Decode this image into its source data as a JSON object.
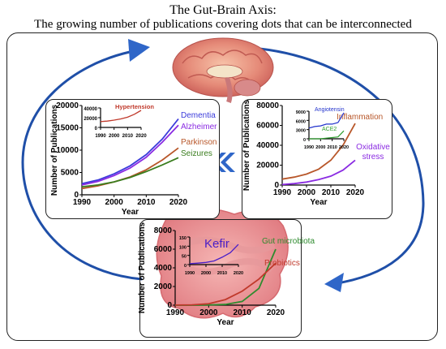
{
  "title": {
    "line1": "The Gut-Brain Axis:",
    "line2": "The growing number of publications covering dots that can be interconnected"
  },
  "colors": {
    "dementia": "#3b3bdb",
    "alzheimer": "#8a2be2",
    "parkinson": "#b8572a",
    "seizures": "#3a7d1e",
    "hypertension": "#c0392b",
    "inflammation": "#b8572a",
    "oxidative": "#8a2be2",
    "angiotensin": "#2233cc",
    "ace2": "#2e9e2e",
    "gut": "#2e8b2e",
    "probiotics": "#c0392b",
    "kefir": "#4a1fc8",
    "arrow": "#1f4fa8",
    "chevron": "#2f66c8"
  },
  "chart_data": [
    {
      "id": "neuro",
      "type": "line",
      "xlabel": "Year",
      "ylabel": "Number of Publications",
      "xlim": [
        1990,
        2020
      ],
      "ylim": [
        0,
        20000
      ],
      "xticks": [
        "1990",
        "2000",
        "2010",
        "2020"
      ],
      "yticks": [
        "0",
        "5000",
        "10000",
        "15000",
        "20000"
      ],
      "x": [
        1990,
        1995,
        2000,
        2005,
        2010,
        2015,
        2020
      ],
      "series": [
        {
          "name": "Dementia",
          "values": [
            2500,
            3300,
            4700,
            6500,
            9000,
            12500,
            17000
          ]
        },
        {
          "name": "Alzheimer",
          "values": [
            2200,
            3000,
            4300,
            6000,
            8400,
            11800,
            15600
          ]
        },
        {
          "name": "Parkinson",
          "values": [
            1400,
            2000,
            2900,
            4000,
            5600,
            7800,
            10500
          ]
        },
        {
          "name": "Seizures",
          "values": [
            1800,
            2200,
            2900,
            3900,
            5200,
            6700,
            8300
          ]
        }
      ],
      "inset": {
        "title": "Hypertension",
        "xticks": [
          "1990",
          "2000",
          "2010",
          "2020"
        ],
        "yticks": [
          "0",
          "20000",
          "40000"
        ],
        "ylim": [
          0,
          40000
        ],
        "x": [
          1990,
          1995,
          2000,
          2005,
          2010,
          2015,
          2020
        ],
        "values": [
          12000,
          13000,
          15000,
          17500,
          21000,
          27000,
          35000
        ]
      }
    },
    {
      "id": "inflammation",
      "type": "line",
      "xlabel": "Year",
      "ylabel": "Number of Publications",
      "xlim": [
        1990,
        2020
      ],
      "ylim": [
        0,
        80000
      ],
      "xticks": [
        "1990",
        "2000",
        "2010",
        "2020"
      ],
      "yticks": [
        "0",
        "20000",
        "40000",
        "60000",
        "80000"
      ],
      "x": [
        1990,
        1995,
        2000,
        2005,
        2010,
        2015,
        2020
      ],
      "series": [
        {
          "name": "Inflammation",
          "values": [
            6000,
            8000,
            11000,
            16000,
            25000,
            40000,
            62000
          ]
        },
        {
          "name": "Oxidative stress",
          "values": [
            500,
            1500,
            3000,
            5500,
            9000,
            15000,
            25000
          ]
        }
      ],
      "inset": {
        "x": [
          1990,
          1995,
          2000,
          2005,
          2010,
          2015,
          2020
        ],
        "xticks": [
          "1990",
          "2000",
          "2010",
          "2020"
        ],
        "yticks": [
          "0",
          "3000",
          "6000",
          "9000"
        ],
        "ylim": [
          0,
          9000
        ],
        "series": [
          {
            "name": "Angiotensin",
            "values": [
              3500,
              4000,
              4200,
              4800,
              4800,
              5300,
              8500
            ]
          },
          {
            "name": "ACE2",
            "values": [
              0,
              0,
              0,
              200,
              400,
              600,
              2600
            ]
          }
        ]
      }
    },
    {
      "id": "gut",
      "type": "line",
      "xlabel": "Year",
      "ylabel": "Number of Publications",
      "xlim": [
        1990,
        2020
      ],
      "ylim": [
        0,
        8000
      ],
      "xticks": [
        "1990",
        "2000",
        "2010",
        "2020"
      ],
      "yticks": [
        "0",
        "2000",
        "4000",
        "6000",
        "8000"
      ],
      "x": [
        1990,
        1995,
        2000,
        2005,
        2010,
        2015,
        2020
      ],
      "series": [
        {
          "name": "Gut microbiota",
          "values": [
            0,
            0,
            20,
            80,
            400,
            1800,
            6000
          ]
        },
        {
          "name": "Probiotics",
          "values": [
            10,
            30,
            150,
            600,
            1500,
            2800,
            4500
          ]
        }
      ],
      "inset": {
        "title": "Kefir",
        "x": [
          1990,
          1995,
          2000,
          2005,
          2010,
          2015,
          2020
        ],
        "xticks": [
          "1990",
          "2000",
          "2010",
          "2020"
        ],
        "yticks": [
          "0",
          "50",
          "100",
          "150"
        ],
        "ylim": [
          0,
          150
        ],
        "values": [
          5,
          8,
          12,
          20,
          40,
          65,
          110
        ]
      }
    }
  ]
}
